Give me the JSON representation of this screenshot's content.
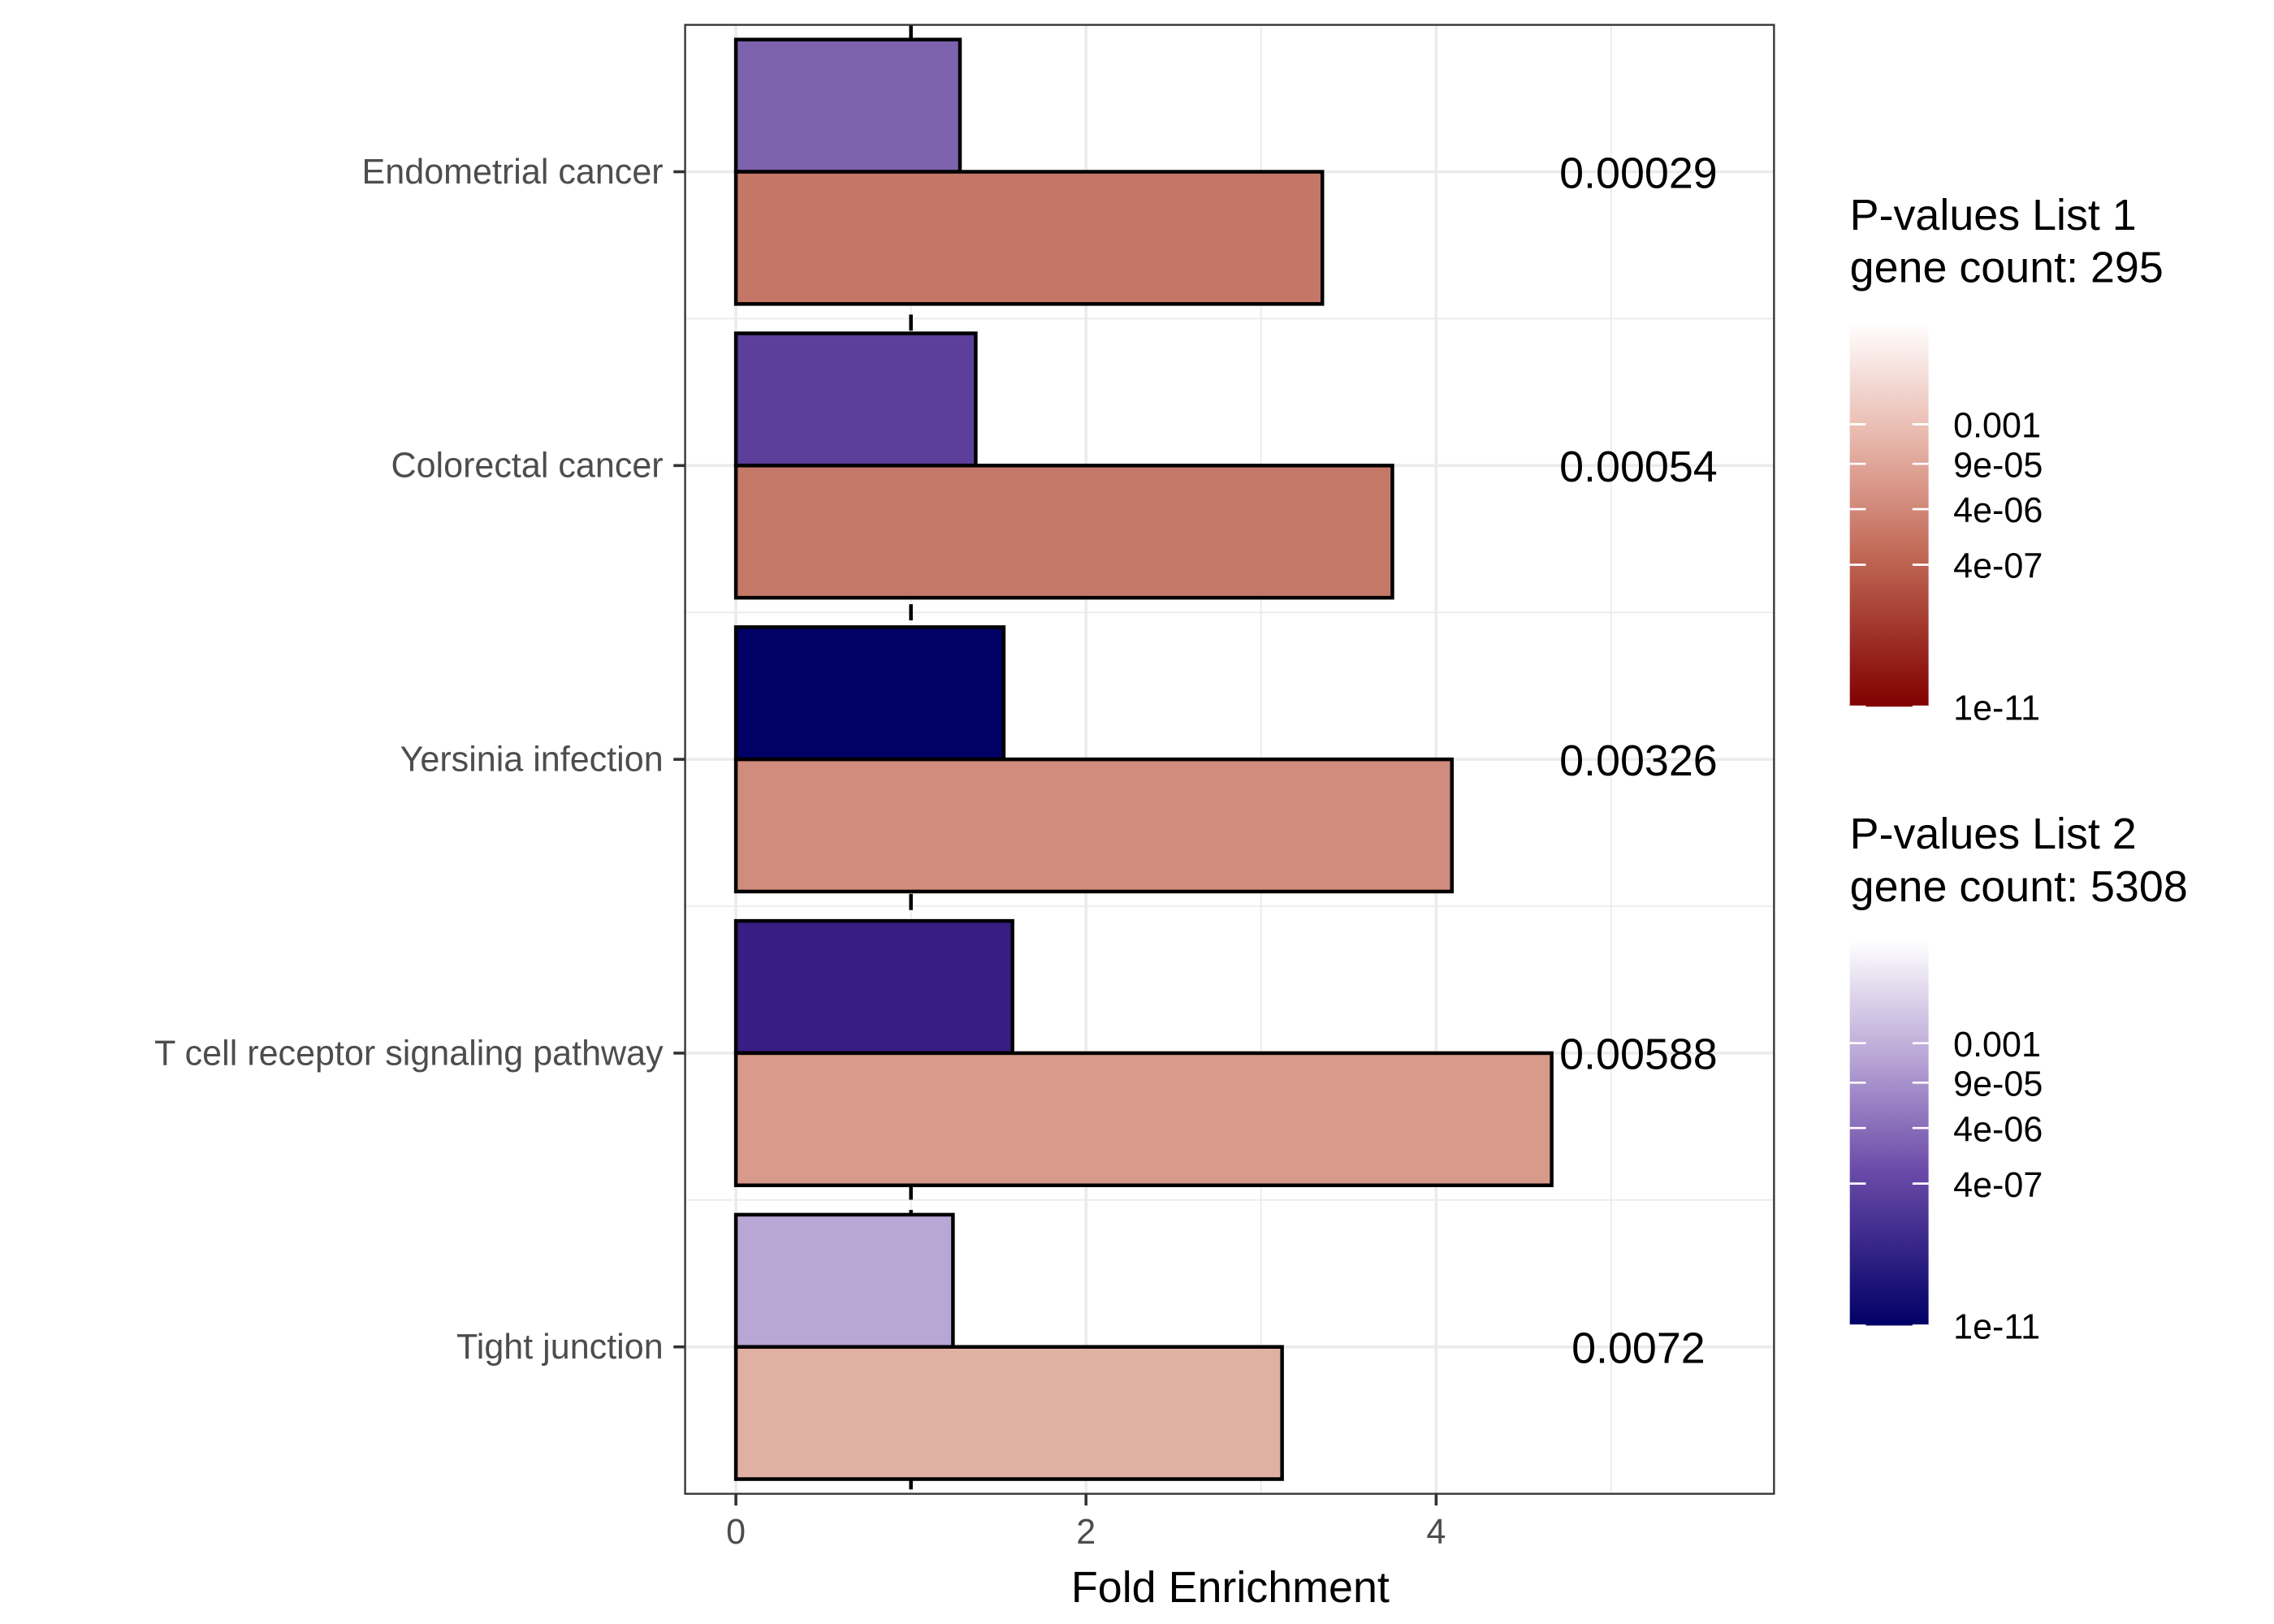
{
  "chart_data": {
    "type": "bar",
    "orientation": "horizontal",
    "xlabel": "Fold Enrichment",
    "ylabel": "",
    "xlim": [
      -0.29,
      5.93
    ],
    "xticks": [
      "0",
      "2",
      "4"
    ],
    "grid": true,
    "reference_line": {
      "x": 1,
      "style": "dashed",
      "color": "#000000"
    },
    "categories": [
      "Endometrial cancer",
      "Colorectal cancer",
      "Yersinia infection",
      "T cell receptor signaling pathway",
      "Tight junction"
    ],
    "series": [
      {
        "legend": "List 2",
        "values": [
          1.28,
          1.37,
          1.53,
          1.58,
          1.24
        ],
        "colors": [
          "#7d62ae",
          "#5c3f9a",
          "#000066",
          "#381d84",
          "#b8a7d5"
        ]
      },
      {
        "legend": "List 1",
        "values": [
          3.35,
          3.75,
          4.09,
          4.66,
          3.12
        ],
        "colors": [
          "#c47766",
          "#c47868",
          "#d08c7c",
          "#d89a8a",
          "#e0b0a3"
        ]
      }
    ],
    "annotations": [
      "0.00029",
      "0.00054",
      "0.00326",
      "0.00588",
      "0.0072"
    ],
    "legend_placement": "right",
    "legends": [
      {
        "title_line1": "P-values List 1",
        "title_line2": "gene count: 295",
        "color_low": "#800000",
        "color_high": "#ffffff",
        "labels": [
          "0.001",
          "9e-05",
          "4e-06",
          "4e-07",
          "1e-11"
        ]
      },
      {
        "title_line1": "P-values List 2",
        "title_line2": "gene count: 5308",
        "color_low": "#000066",
        "color_high": "#ffffff",
        "labels": [
          "0.001",
          "9e-05",
          "4e-06",
          "4e-07",
          "1e-11"
        ]
      }
    ]
  }
}
